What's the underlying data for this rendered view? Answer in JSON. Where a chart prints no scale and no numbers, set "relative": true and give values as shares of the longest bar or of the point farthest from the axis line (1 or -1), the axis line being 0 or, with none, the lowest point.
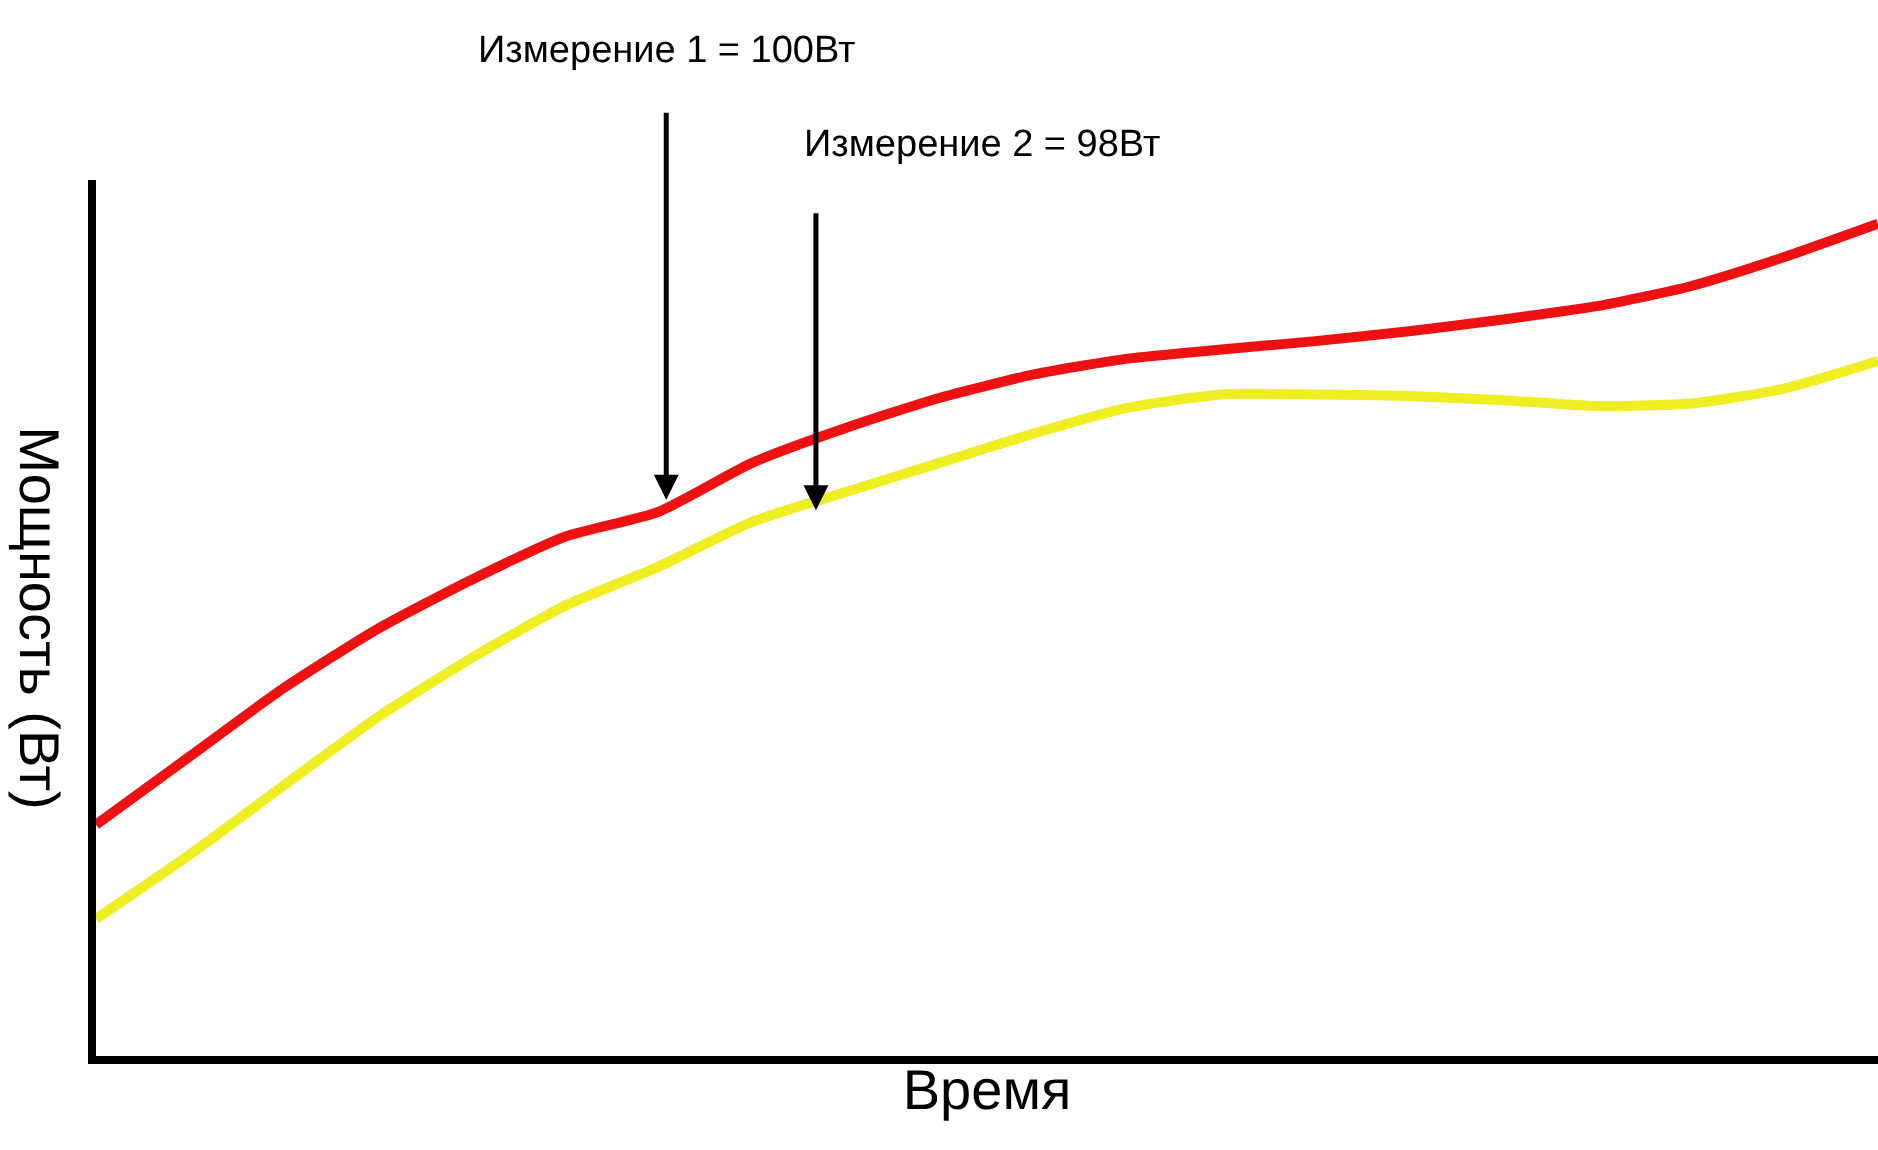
{
  "chart_data": {
    "type": "line",
    "relative": true,
    "xlabel": "Время",
    "ylabel": "Мощность (Вт)",
    "categories": [
      null,
      null,
      null,
      null,
      null,
      null,
      null,
      null,
      null,
      null,
      null,
      null,
      null,
      null,
      null,
      null,
      null,
      null,
      null,
      null
    ],
    "series": [
      {
        "color": "#ee1111",
        "values": [
          0.278,
          0.36,
          0.442,
          0.513,
          0.572,
          0.624,
          0.654,
          0.713,
          0.755,
          0.791,
          0.819,
          0.838,
          0.849,
          0.859,
          0.871,
          0.885,
          0.901,
          0.925,
          0.96,
          1
        ]
      },
      {
        "color": "#eeee22",
        "values": [
          0.165,
          0.242,
          0.325,
          0.407,
          0.478,
          0.541,
          0.588,
          0.642,
          0.678,
          0.713,
          0.748,
          0.779,
          0.795,
          0.795,
          0.793,
          0.788,
          0.781,
          0.784,
          0.802,
          0.835
        ]
      }
    ],
    "annotations": [
      "Измерение 1 = 100Вт",
      "Измерение 2 = 98Вт"
    ],
    "grid": false,
    "marker": "none",
    "line_style": "solid"
  }
}
